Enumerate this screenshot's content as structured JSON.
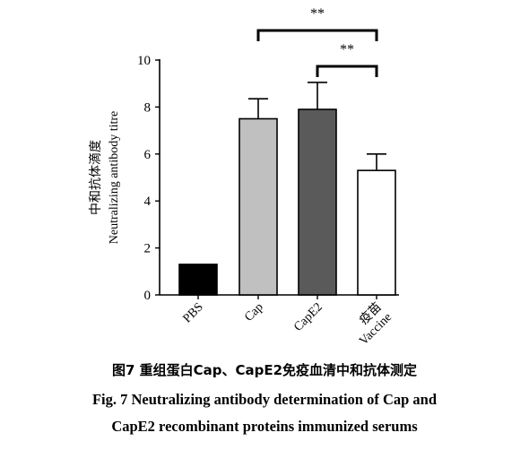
{
  "chart_data": {
    "type": "bar",
    "categories": [
      "PBS",
      "Cap",
      "CapE2",
      "疫苗\nVaccine"
    ],
    "values": [
      1.3,
      7.5,
      7.9,
      5.3
    ],
    "errors": [
      0,
      0.85,
      1.15,
      0.7
    ],
    "bar_colors": [
      "#000000",
      "#c0c0c0",
      "#5a5a5a",
      "#ffffff"
    ],
    "ylabel_cn": "中和抗体滴度",
    "ylabel_en": "Neutralizing antibody titre",
    "ylim": [
      0,
      10
    ],
    "yticks": [
      0,
      2,
      4,
      6,
      8,
      10
    ],
    "grid": false,
    "significance": [
      {
        "from": "Cap",
        "to": "疫苗\nVaccine",
        "label": "**"
      },
      {
        "from": "CapE2",
        "to": "疫苗\nVaccine",
        "label": "**"
      }
    ]
  },
  "caption": {
    "cn": "图7 重组蛋白Cap、CapE2免疫血清中和抗体测定",
    "en_line1": "Fig. 7    Neutralizing antibody determination of Cap and",
    "en_line2": "CapE2 recombinant proteins immunized serums"
  }
}
